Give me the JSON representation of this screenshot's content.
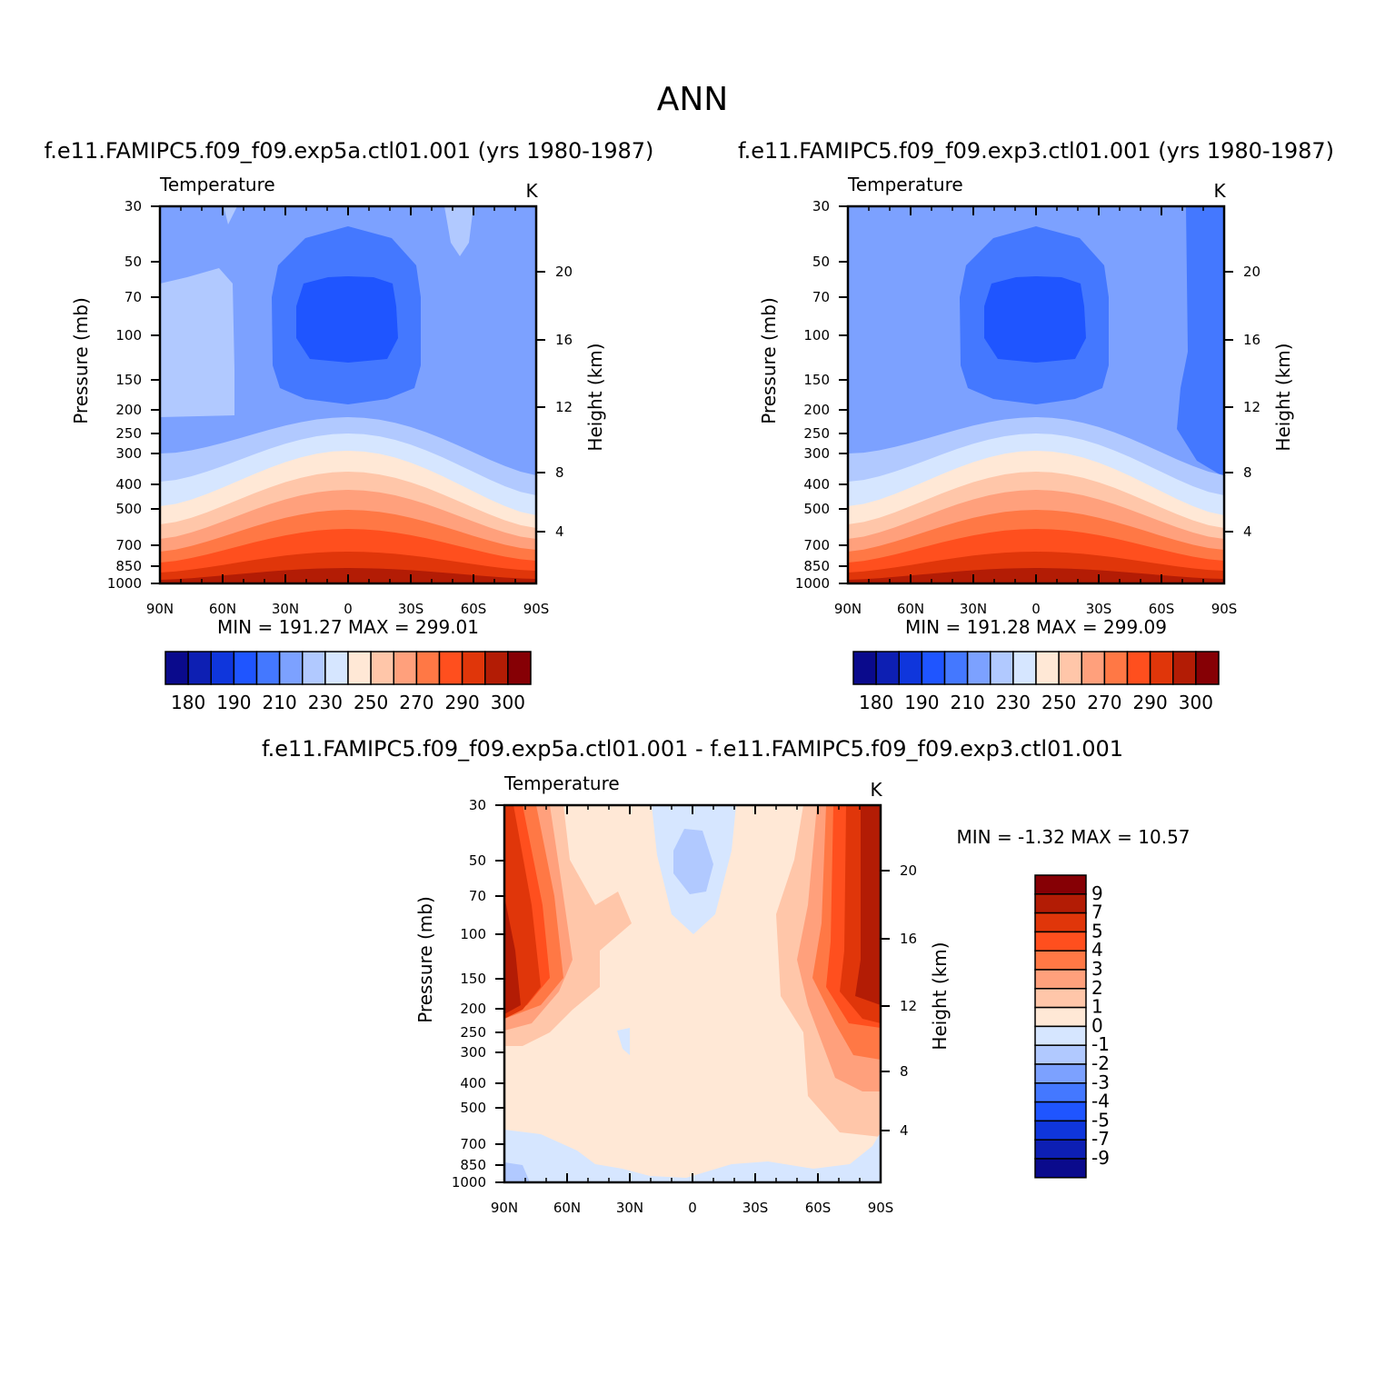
{
  "main_title": "ANN",
  "colors": {
    "abs_levels": [
      "#0a0a8c",
      "#0d1fb3",
      "#0f36dc",
      "#1f55ff",
      "#4478ff",
      "#7ca1ff",
      "#b1c9ff",
      "#d6e6ff",
      "#ffe8d6",
      "#ffc6a9",
      "#ffa07c",
      "#ff7845",
      "#ff4f1e",
      "#e0360a",
      "#b31c05",
      "#860005"
    ],
    "diff_levels": [
      "#0a0a8c",
      "#0d1fb3",
      "#0f36dc",
      "#1f55ff",
      "#4478ff",
      "#7ca1ff",
      "#b1c9ff",
      "#d6e6ff",
      "#ffe8d6",
      "#ffc6a9",
      "#ffa07c",
      "#ff7845",
      "#ff4f1e",
      "#e0360a",
      "#b31c05",
      "#860005"
    ]
  },
  "panels": {
    "left": {
      "case_title": "f.e11.FAMIPC5.f09_f09.exp5a.ctl01.001 (yrs 1980-1987)",
      "variable": "Temperature",
      "units": "K",
      "min_max": "MIN = 191.27   MAX = 299.01"
    },
    "right": {
      "case_title": "f.e11.FAMIPC5.f09_f09.exp3.ctl01.001 (yrs 1980-1987)",
      "variable": "Temperature",
      "units": "K",
      "min_max": "MIN = 191.28   MAX = 299.09"
    },
    "diff": {
      "case_title": "f.e11.FAMIPC5.f09_f09.exp5a.ctl01.001 - f.e11.FAMIPC5.f09_f09.exp3.ctl01.001",
      "variable": "Temperature",
      "units": "K",
      "min_max": "MIN =   -1.32   MAX =   10.57"
    }
  },
  "axes": {
    "ylabel": "Pressure (mb)",
    "y2label": "Height (km)",
    "pressure_ticks": [
      "30",
      "50",
      "70",
      "100",
      "150",
      "200",
      "250",
      "300",
      "400",
      "500",
      "700",
      "850",
      "1000"
    ],
    "height_ticks": [
      "20",
      "16",
      "12",
      "8",
      "4"
    ],
    "lat_ticks": [
      "90N",
      "60N",
      "30N",
      "0",
      "30S",
      "60S",
      "90S"
    ]
  },
  "chart_data": [
    {
      "type": "heatmap",
      "name": "exp5a",
      "x": [
        90,
        60,
        30,
        0,
        -30,
        -60,
        -90
      ],
      "y": [
        30,
        50,
        70,
        100,
        150,
        200,
        250,
        300,
        400,
        500,
        700,
        850,
        1000
      ],
      "xlabel": "",
      "ylabel": "Pressure (mb)",
      "title": "Temperature",
      "units": "K",
      "min": 191.27,
      "max": 299.01,
      "colorbar_labels": [
        "180",
        "190",
        "210",
        "230",
        "250",
        "270",
        "290",
        "300"
      ]
    },
    {
      "type": "heatmap",
      "name": "exp3",
      "x": [
        90,
        60,
        30,
        0,
        -30,
        -60,
        -90
      ],
      "y": [
        30,
        50,
        70,
        100,
        150,
        200,
        250,
        300,
        400,
        500,
        700,
        850,
        1000
      ],
      "xlabel": "",
      "ylabel": "Pressure (mb)",
      "title": "Temperature",
      "units": "K",
      "min": 191.28,
      "max": 299.09,
      "colorbar_labels": [
        "180",
        "190",
        "210",
        "230",
        "250",
        "270",
        "290",
        "300"
      ]
    },
    {
      "type": "heatmap",
      "name": "difference",
      "x": [
        90,
        60,
        30,
        0,
        -30,
        -60,
        -90
      ],
      "y": [
        30,
        50,
        70,
        100,
        150,
        200,
        250,
        300,
        400,
        500,
        700,
        850,
        1000
      ],
      "xlabel": "",
      "ylabel": "Pressure (mb)",
      "title": "Temperature",
      "units": "K",
      "min": -1.32,
      "max": 10.57,
      "colorbar_labels": [
        "9",
        "7",
        "5",
        "4",
        "3",
        "2",
        "1",
        "0",
        "-1",
        "-2",
        "-3",
        "-4",
        "-5",
        "-7",
        "-9"
      ]
    }
  ]
}
